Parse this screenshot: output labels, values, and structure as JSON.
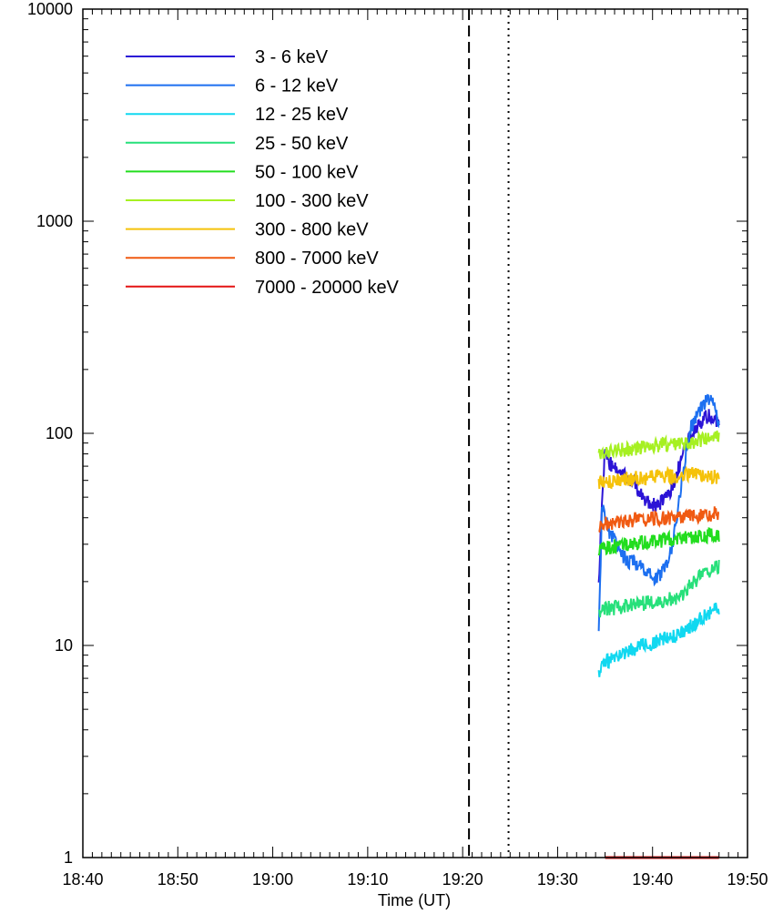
{
  "chart_data": {
    "type": "line",
    "title": "",
    "xlabel": "Time (UT)",
    "ylabel": "",
    "xscale": "time",
    "yscale": "log",
    "xlim": [
      "18:40",
      "19:50"
    ],
    "ylim": [
      1,
      10000
    ],
    "x_ticks": [
      "18:40",
      "18:50",
      "19:00",
      "19:10",
      "19:20",
      "19:30",
      "19:40",
      "19:50"
    ],
    "y_ticks": [
      "1",
      "10",
      "100",
      "1000",
      "10000"
    ],
    "grid": false,
    "legend": "top-left",
    "vertical_lines": [
      {
        "x": "19:20:40",
        "style": "dashed",
        "color": "#000000"
      },
      {
        "x": "19:24:50",
        "style": "dotted",
        "color": "#000000"
      }
    ],
    "series": [
      {
        "name": "3 - 6 keV",
        "color": "#2b13d6",
        "x": [
          "19:34:20",
          "19:34:40",
          "19:35:00",
          "19:35:30",
          "19:36:00",
          "19:36:30",
          "19:37:00",
          "19:37:30",
          "19:38:00",
          "19:38:30",
          "19:39:00",
          "19:39:30",
          "19:40:00",
          "19:40:30",
          "19:41:00",
          "19:41:30",
          "19:42:00",
          "19:42:30",
          "19:43:00",
          "19:43:30",
          "19:44:00",
          "19:44:30",
          "19:45:00",
          "19:45:30",
          "19:46:00",
          "19:46:30",
          "19:47:00"
        ],
        "y": [
          20,
          45,
          85,
          72,
          70,
          68,
          65,
          60,
          58,
          54,
          50,
          48,
          46,
          46,
          48,
          50,
          55,
          64,
          75,
          88,
          98,
          105,
          112,
          118,
          122,
          118,
          108
        ]
      },
      {
        "name": "6 - 12 keV",
        "color": "#1c6ff0",
        "x": [
          "19:34:20",
          "19:34:40",
          "19:35:00",
          "19:35:30",
          "19:36:00",
          "19:36:30",
          "19:37:00",
          "19:37:30",
          "19:38:00",
          "19:38:30",
          "19:39:00",
          "19:39:30",
          "19:40:00",
          "19:40:30",
          "19:41:00",
          "19:41:30",
          "19:42:00",
          "19:42:30",
          "19:43:00",
          "19:43:30",
          "19:44:00",
          "19:44:30",
          "19:45:00",
          "19:45:30",
          "19:46:00",
          "19:46:30",
          "19:47:00"
        ],
        "y": [
          11,
          45,
          40,
          34,
          31,
          28,
          26,
          25,
          25,
          24,
          23,
          22,
          21,
          21,
          22,
          24,
          28,
          38,
          55,
          80,
          105,
          120,
          130,
          140,
          145,
          140,
          110
        ]
      },
      {
        "name": "12 - 25 keV",
        "color": "#11d8f0",
        "x": [
          "19:34:20",
          "19:35:00",
          "19:36:00",
          "19:37:00",
          "19:38:00",
          "19:39:00",
          "19:40:00",
          "19:41:00",
          "19:42:00",
          "19:43:00",
          "19:44:00",
          "19:45:00",
          "19:46:00",
          "19:47:00"
        ],
        "y": [
          7.5,
          8.3,
          8.8,
          9.2,
          9.6,
          10.0,
          10.3,
          10.6,
          11.0,
          11.5,
          12.3,
          13.3,
          14.5,
          15.0
        ]
      },
      {
        "name": "25 - 50 keV",
        "color": "#27e07a",
        "x": [
          "19:34:20",
          "19:35:00",
          "19:36:00",
          "19:37:00",
          "19:38:00",
          "19:39:00",
          "19:40:00",
          "19:41:00",
          "19:42:00",
          "19:43:00",
          "19:43:30",
          "19:44:00",
          "19:45:00",
          "19:46:00",
          "19:47:00"
        ],
        "y": [
          14,
          15,
          15,
          15.3,
          15.5,
          15.8,
          16,
          16.3,
          16.6,
          17,
          18,
          19.5,
          21,
          22.5,
          23.5
        ]
      },
      {
        "name": "50 - 100 keV",
        "color": "#22dd1e",
        "x": [
          "19:34:20",
          "19:35:00",
          "19:36:00",
          "19:37:00",
          "19:38:00",
          "19:39:00",
          "19:40:00",
          "19:41:00",
          "19:42:00",
          "19:43:00",
          "19:44:00",
          "19:45:00",
          "19:46:00",
          "19:47:00"
        ],
        "y": [
          28,
          29,
          29.5,
          30,
          30.3,
          30.6,
          31,
          31.3,
          31.6,
          32,
          32.3,
          32.6,
          33,
          33.3
        ]
      },
      {
        "name": "100 - 300 keV",
        "color": "#a6f022",
        "x": [
          "19:34:20",
          "19:35:00",
          "19:36:00",
          "19:37:00",
          "19:38:00",
          "19:39:00",
          "19:40:00",
          "19:41:00",
          "19:42:00",
          "19:43:00",
          "19:44:00",
          "19:45:00",
          "19:46:00",
          "19:47:00"
        ],
        "y": [
          78,
          80,
          82,
          84,
          85,
          86,
          87,
          88,
          89,
          90,
          91,
          92,
          94,
          96
        ]
      },
      {
        "name": "300 - 800 keV",
        "color": "#f5c20a",
        "x": [
          "19:34:20",
          "19:35:00",
          "19:36:00",
          "19:37:00",
          "19:38:00",
          "19:39:00",
          "19:40:00",
          "19:41:00",
          "19:42:00",
          "19:43:00",
          "19:44:00",
          "19:45:00",
          "19:46:00",
          "19:47:00"
        ],
        "y": [
          58,
          59,
          60,
          61,
          61.5,
          62,
          62.5,
          63,
          63,
          63.5,
          64,
          64,
          63,
          62
        ]
      },
      {
        "name": "800 - 7000 keV",
        "color": "#f05a12",
        "x": [
          "19:34:20",
          "19:35:00",
          "19:36:00",
          "19:37:00",
          "19:38:00",
          "19:39:00",
          "19:40:00",
          "19:41:00",
          "19:42:00",
          "19:43:00",
          "19:44:00",
          "19:45:00",
          "19:46:00",
          "19:47:00"
        ],
        "y": [
          37,
          37.5,
          38,
          38.5,
          39,
          39,
          39.5,
          40,
          40,
          40.5,
          41,
          41,
          41.5,
          42
        ]
      },
      {
        "name": "7000 - 20000 keV",
        "color": "#e41414",
        "x": [
          "19:35:00",
          "19:36:00",
          "19:37:00",
          "19:38:00",
          "19:39:00",
          "19:40:00",
          "19:41:00",
          "19:42:00",
          "19:43:00",
          "19:44:00",
          "19:45:00",
          "19:46:00",
          "19:47:00"
        ],
        "y": [
          1,
          1,
          1,
          1,
          1,
          1,
          1,
          1,
          1,
          1,
          1,
          1,
          1
        ]
      }
    ]
  }
}
